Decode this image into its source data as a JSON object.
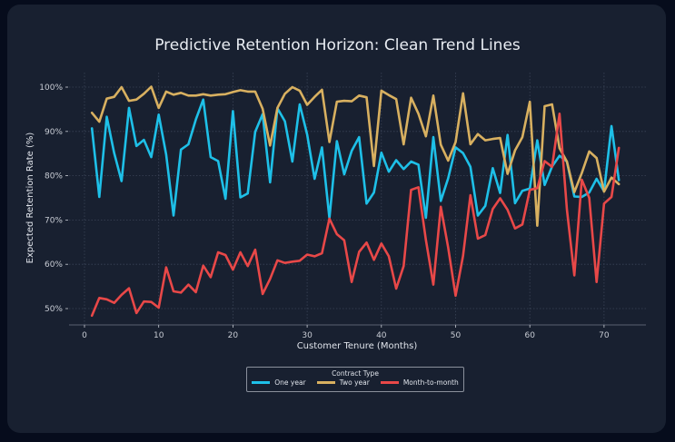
{
  "chart_data": {
    "type": "line",
    "title": "Predictive Retention Horizon: Clean Trend Lines",
    "xlabel": "Customer Tenure (Months)",
    "ylabel": "Expected Retention Rate (%)",
    "xlim": [
      -2,
      75
    ],
    "ylim": [
      47,
      102
    ],
    "xticks": [
      0,
      10,
      20,
      30,
      40,
      50,
      60,
      70
    ],
    "xtick_labels": [
      "0",
      "10",
      "20",
      "30",
      "40",
      "50",
      "60",
      "70"
    ],
    "yticks": [
      50,
      60,
      70,
      80,
      90,
      100
    ],
    "ytick_labels": [
      "50%",
      "60%",
      "70%",
      "80%",
      "90%",
      "100%"
    ],
    "grid": true,
    "legend": {
      "title": "Contract Type",
      "placement": "bottom-center"
    },
    "x": [
      1,
      2,
      3,
      4,
      5,
      6,
      7,
      8,
      9,
      10,
      11,
      12,
      13,
      14,
      15,
      16,
      17,
      18,
      19,
      20,
      21,
      22,
      23,
      24,
      25,
      26,
      27,
      28,
      29,
      30,
      31,
      32,
      33,
      34,
      35,
      36,
      37,
      38,
      39,
      40,
      41,
      42,
      43,
      44,
      45,
      46,
      47,
      48,
      49,
      50,
      51,
      52,
      53,
      54,
      55,
      56,
      57,
      58,
      59,
      60,
      61,
      62,
      63,
      64,
      65,
      66,
      67,
      68,
      69,
      70,
      71,
      72
    ],
    "series": [
      {
        "name": "One year",
        "color": "#1ec0e8",
        "values": [
          90.7,
          75.2,
          93.3,
          85.1,
          78.8,
          95.3,
          86.7,
          88.1,
          84.2,
          93.8,
          84.8,
          71.0,
          85.9,
          87.1,
          92.7,
          97.2,
          84.2,
          83.3,
          74.8,
          94.6,
          75.1,
          76.0,
          89.9,
          93.9,
          78.5,
          95.2,
          92.3,
          83.2,
          96.1,
          89.3,
          79.3,
          86.4,
          70.4,
          87.8,
          80.3,
          85.6,
          88.7,
          73.7,
          76.2,
          85.2,
          80.9,
          83.5,
          81.5,
          83.2,
          82.5,
          70.5,
          88.7,
          74.3,
          79.4,
          86.4,
          85.1,
          82.0,
          71.0,
          73.2,
          81.7,
          76.1,
          89.2,
          73.8,
          76.6,
          77.1,
          88.0,
          77.9,
          82.1,
          84.5,
          83.2,
          75.3,
          75.2,
          76.2,
          79.3,
          76.5,
          91.2,
          79.0
        ]
      },
      {
        "name": "Two year",
        "color": "#d8b060",
        "values": [
          94.2,
          92.2,
          97.4,
          97.8,
          100.0,
          96.9,
          97.2,
          98.5,
          100.1,
          95.3,
          99.0,
          98.3,
          98.7,
          98.1,
          98.1,
          98.4,
          98.1,
          98.3,
          98.4,
          98.9,
          99.3,
          99.0,
          99.0,
          95.1,
          86.8,
          95.3,
          98.5,
          100.0,
          99.2,
          96.0,
          97.8,
          99.4,
          87.6,
          96.7,
          96.9,
          96.8,
          98.1,
          97.7,
          82.2,
          99.2,
          98.2,
          97.3,
          87.1,
          97.6,
          94.0,
          88.9,
          98.1,
          87.0,
          83.4,
          87.6,
          98.6,
          87.1,
          89.4,
          88.0,
          88.3,
          88.5,
          80.4,
          85.7,
          88.7,
          96.7,
          68.7,
          95.7,
          96.1,
          86.2,
          83.2,
          76.3,
          80.6,
          85.5,
          84.0,
          76.4,
          79.6,
          78.1
        ]
      },
      {
        "name": "Month-to-month",
        "color": "#e84848",
        "values": [
          48.4,
          52.4,
          52.1,
          51.3,
          53.1,
          54.6,
          49.0,
          51.6,
          51.5,
          50.2,
          59.3,
          53.9,
          53.6,
          55.4,
          53.7,
          59.7,
          57.1,
          62.7,
          62.1,
          58.8,
          62.7,
          59.6,
          63.3,
          53.3,
          56.7,
          60.9,
          60.3,
          60.6,
          60.8,
          62.2,
          61.8,
          62.5,
          70.3,
          66.8,
          65.4,
          56.0,
          62.8,
          64.9,
          61.0,
          64.7,
          61.8,
          54.5,
          59.6,
          76.8,
          77.4,
          65.5,
          55.4,
          73.0,
          63.8,
          52.9,
          61.9,
          75.6,
          65.8,
          66.6,
          72.5,
          74.9,
          72.3,
          68.1,
          69.0,
          76.8,
          77.2,
          83.3,
          82.0,
          94.0,
          72.4,
          57.5,
          79.1,
          75.0,
          56.0,
          73.7,
          75.2,
          86.3
        ]
      }
    ]
  }
}
